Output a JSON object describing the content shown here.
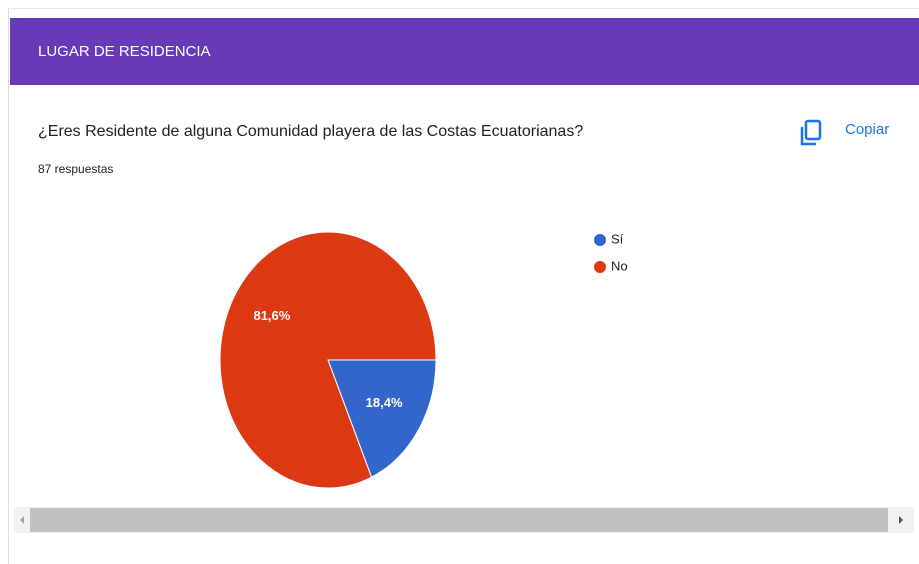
{
  "header": {
    "title": "LUGAR DE RESIDENCIA"
  },
  "question": "¿Eres Residente de alguna Comunidad playera de las Costas Ecuatorianas?",
  "responses": "87 respuestas",
  "copy": "Copiar",
  "chart_data": {
    "type": "pie",
    "categories": [
      "Sí",
      "No"
    ],
    "values": [
      18.4,
      81.6
    ],
    "value_labels": [
      "18,4%",
      "81,6%"
    ],
    "colors": [
      "#3366cc",
      "#dc3912"
    ],
    "legend": "right"
  }
}
